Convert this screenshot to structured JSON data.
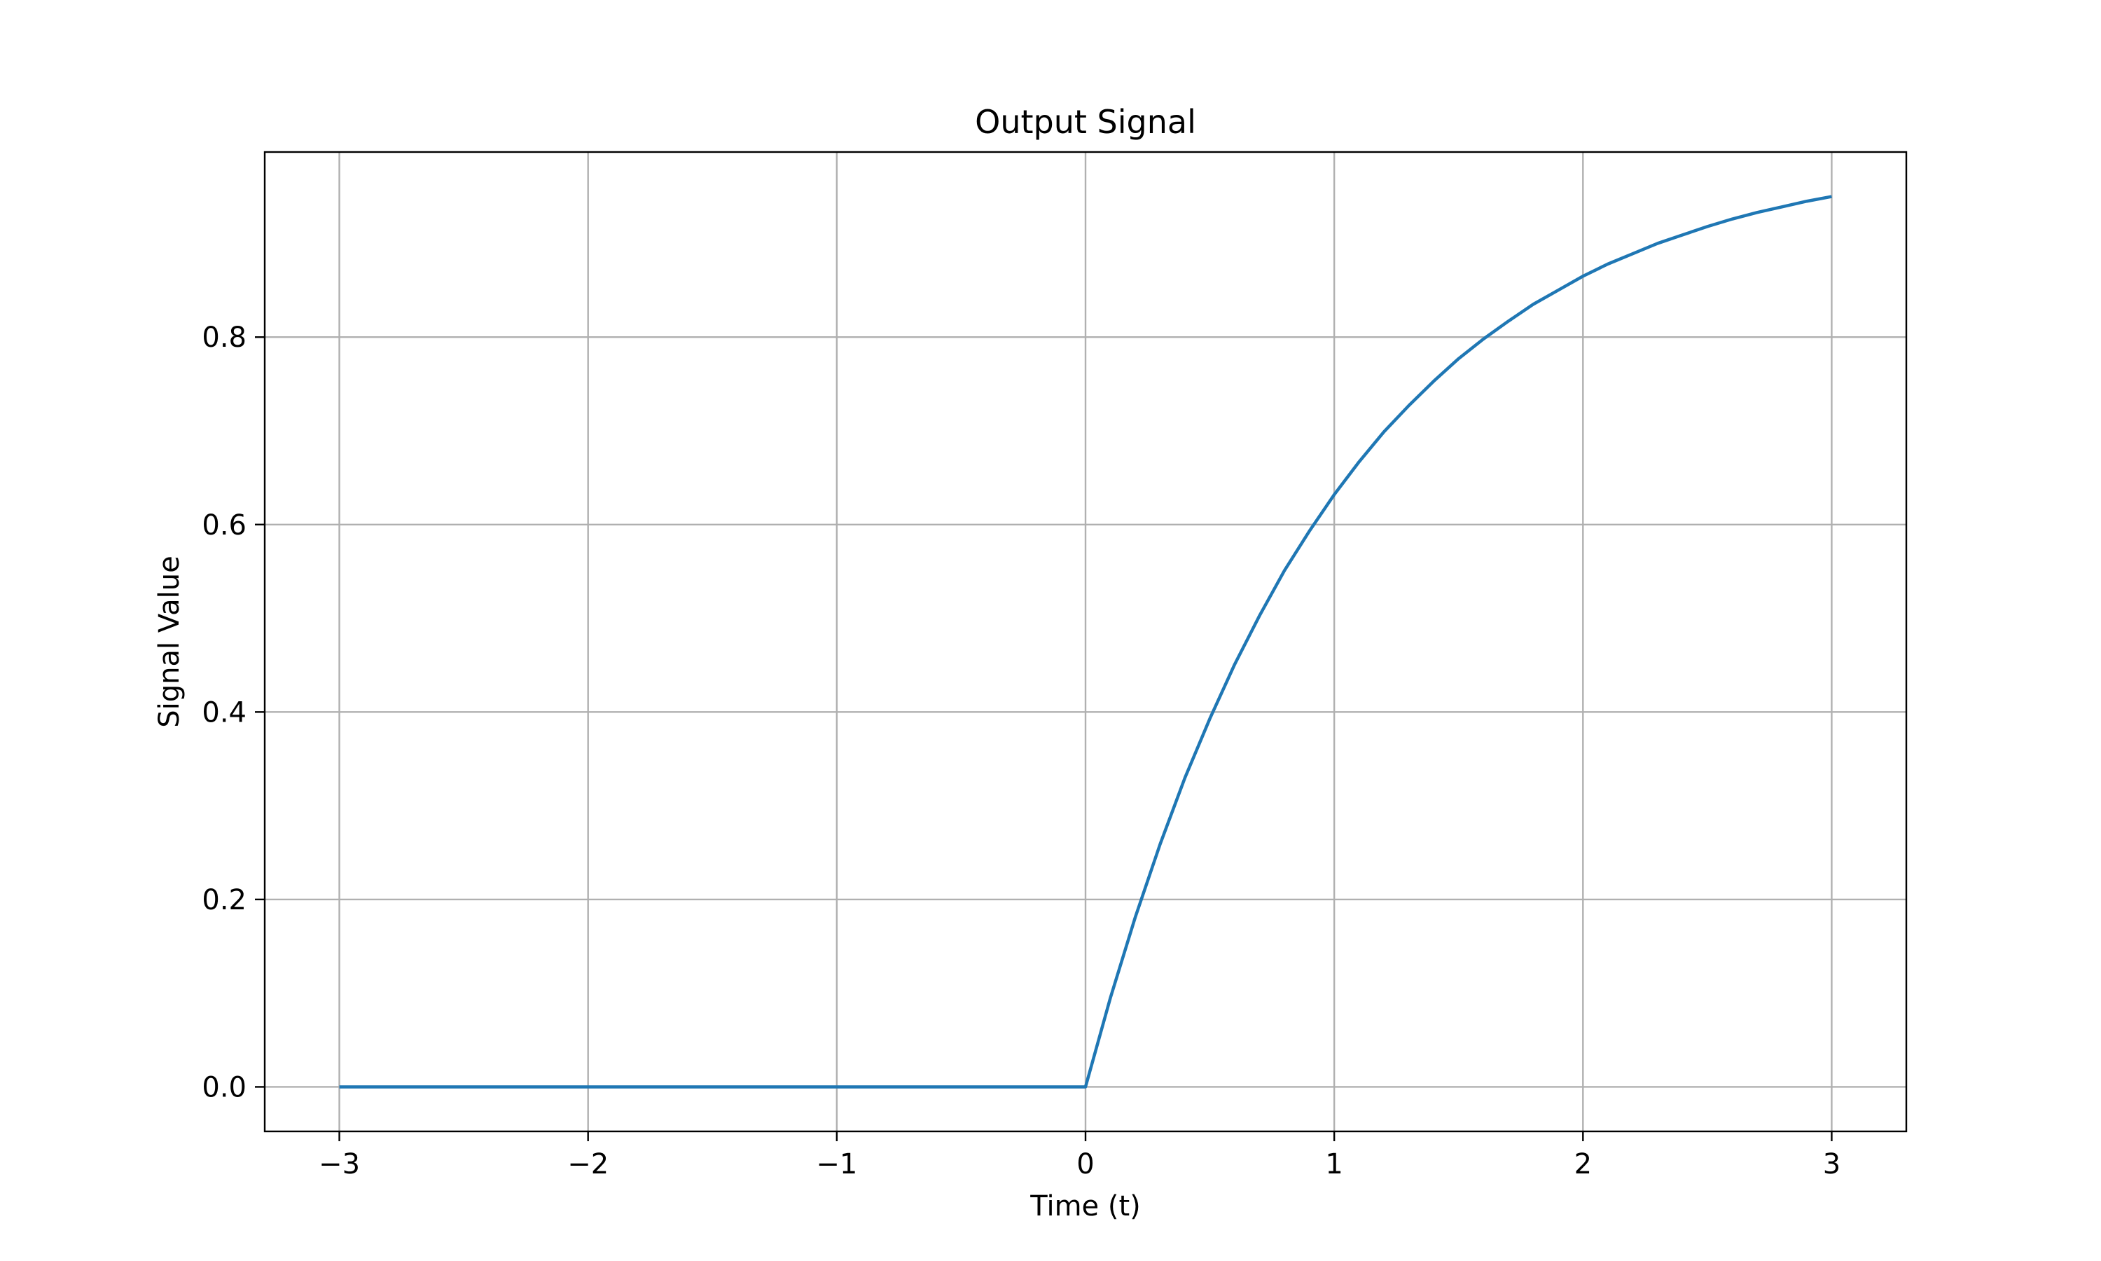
{
  "chart_data": {
    "type": "line",
    "title": "Output Signal",
    "xlabel": "Time (t)",
    "ylabel": "Signal Value",
    "xlim": [
      -3.3,
      3.3
    ],
    "ylim": [
      -0.0475,
      0.9975
    ],
    "grid": true,
    "x_ticks": [
      {
        "value": -3,
        "label": "−3"
      },
      {
        "value": -2,
        "label": "−2"
      },
      {
        "value": -1,
        "label": "−1"
      },
      {
        "value": 0,
        "label": "0"
      },
      {
        "value": 1,
        "label": "1"
      },
      {
        "value": 2,
        "label": "2"
      },
      {
        "value": 3,
        "label": "3"
      }
    ],
    "y_ticks": [
      {
        "value": 0.0,
        "label": "0.0"
      },
      {
        "value": 0.2,
        "label": "0.2"
      },
      {
        "value": 0.4,
        "label": "0.4"
      },
      {
        "value": 0.6,
        "label": "0.6"
      },
      {
        "value": 0.8,
        "label": "0.8"
      }
    ],
    "series": [
      {
        "color": "#1f77b4",
        "x": [
          -3.0,
          -2.0,
          -1.0,
          0.0,
          0.1,
          0.2,
          0.3,
          0.4,
          0.5,
          0.6,
          0.7,
          0.8,
          0.9,
          1.0,
          1.1,
          1.2,
          1.3,
          1.4,
          1.5,
          1.6,
          1.7,
          1.8,
          1.9,
          2.0,
          2.1,
          2.2,
          2.3,
          2.4,
          2.5,
          2.6,
          2.7,
          2.8,
          2.9,
          3.0
        ],
        "y": [
          0.0,
          0.0,
          0.0,
          0.0,
          0.095,
          0.181,
          0.259,
          0.33,
          0.393,
          0.451,
          0.503,
          0.551,
          0.593,
          0.632,
          0.667,
          0.699,
          0.727,
          0.753,
          0.777,
          0.798,
          0.817,
          0.835,
          0.85,
          0.865,
          0.878,
          0.889,
          0.9,
          0.909,
          0.918,
          0.926,
          0.933,
          0.939,
          0.945,
          0.95
        ]
      }
    ]
  }
}
